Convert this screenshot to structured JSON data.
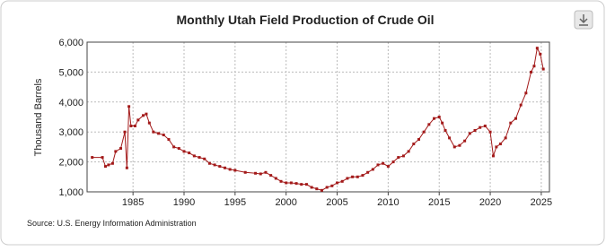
{
  "chart_data": {
    "type": "line",
    "title": "Monthly Utah Field Production of Crude Oil",
    "y_label": "Thousand Barrels",
    "source": "Source: U.S. Energy Information Administration",
    "xlim": [
      1980.5,
      2025.8
    ],
    "xticks": [
      1985,
      1990,
      1995,
      2000,
      2005,
      2010,
      2015,
      2020,
      2025
    ],
    "ylim": [
      1000,
      6000
    ],
    "yticks": [
      {
        "value": 1000,
        "label": "1,000"
      },
      {
        "value": 2000,
        "label": "2,000"
      },
      {
        "value": 3000,
        "label": "3,000"
      },
      {
        "value": 4000,
        "label": "4,000"
      },
      {
        "value": 5000,
        "label": "5,000"
      },
      {
        "value": 6000,
        "label": "6,000"
      }
    ],
    "grid": true,
    "series": [
      {
        "color": "#a31a1a",
        "x": [
          1981,
          1982,
          1982.3,
          1982.6,
          1983,
          1983.3,
          1983.8,
          1984.2,
          1984.4,
          1984.6,
          1984.8,
          1985.2,
          1985.5,
          1986,
          1986.3,
          1986.6,
          1987,
          1987.5,
          1988,
          1988.5,
          1989,
          1989.5,
          1990,
          1990.5,
          1991,
          1991.5,
          1992,
          1992.5,
          1993,
          1993.5,
          1994,
          1994.5,
          1995,
          1996,
          1997,
          1997.5,
          1998,
          1998.5,
          1999,
          1999.5,
          2000,
          2000.5,
          2001,
          2001.5,
          2002,
          2002.5,
          2003,
          2003.5,
          2004,
          2004.5,
          2005,
          2005.5,
          2006,
          2006.5,
          2007,
          2007.5,
          2008,
          2008.5,
          2009,
          2009.5,
          2010,
          2010.5,
          2011,
          2011.5,
          2012,
          2012.5,
          2013,
          2013.5,
          2014,
          2014.5,
          2015,
          2015.3,
          2015.6,
          2016,
          2016.5,
          2017,
          2017.5,
          2018,
          2018.5,
          2019,
          2019.5,
          2020,
          2020.3,
          2020.6,
          2021,
          2021.5,
          2022,
          2022.5,
          2023,
          2023.5,
          2024,
          2024.3,
          2024.6,
          2024.9,
          2025.2
        ],
        "values": [
          2150,
          2150,
          1850,
          1900,
          1950,
          2350,
          2450,
          3000,
          1800,
          3850,
          3200,
          3200,
          3400,
          3550,
          3600,
          3300,
          3000,
          2950,
          2900,
          2750,
          2500,
          2450,
          2350,
          2300,
          2200,
          2150,
          2100,
          1950,
          1900,
          1850,
          1800,
          1750,
          1720,
          1650,
          1620,
          1600,
          1650,
          1550,
          1450,
          1350,
          1300,
          1300,
          1280,
          1250,
          1250,
          1150,
          1100,
          1050,
          1150,
          1200,
          1300,
          1350,
          1450,
          1500,
          1500,
          1550,
          1650,
          1750,
          1900,
          1950,
          1850,
          2000,
          2150,
          2200,
          2350,
          2600,
          2750,
          3000,
          3250,
          3450,
          3500,
          3300,
          3050,
          2800,
          2500,
          2550,
          2700,
          2950,
          3050,
          3150,
          3200,
          3000,
          2200,
          2500,
          2600,
          2800,
          3300,
          3450,
          3900,
          4300,
          5000,
          5200,
          5800,
          5600,
          5100
        ]
      }
    ]
  }
}
